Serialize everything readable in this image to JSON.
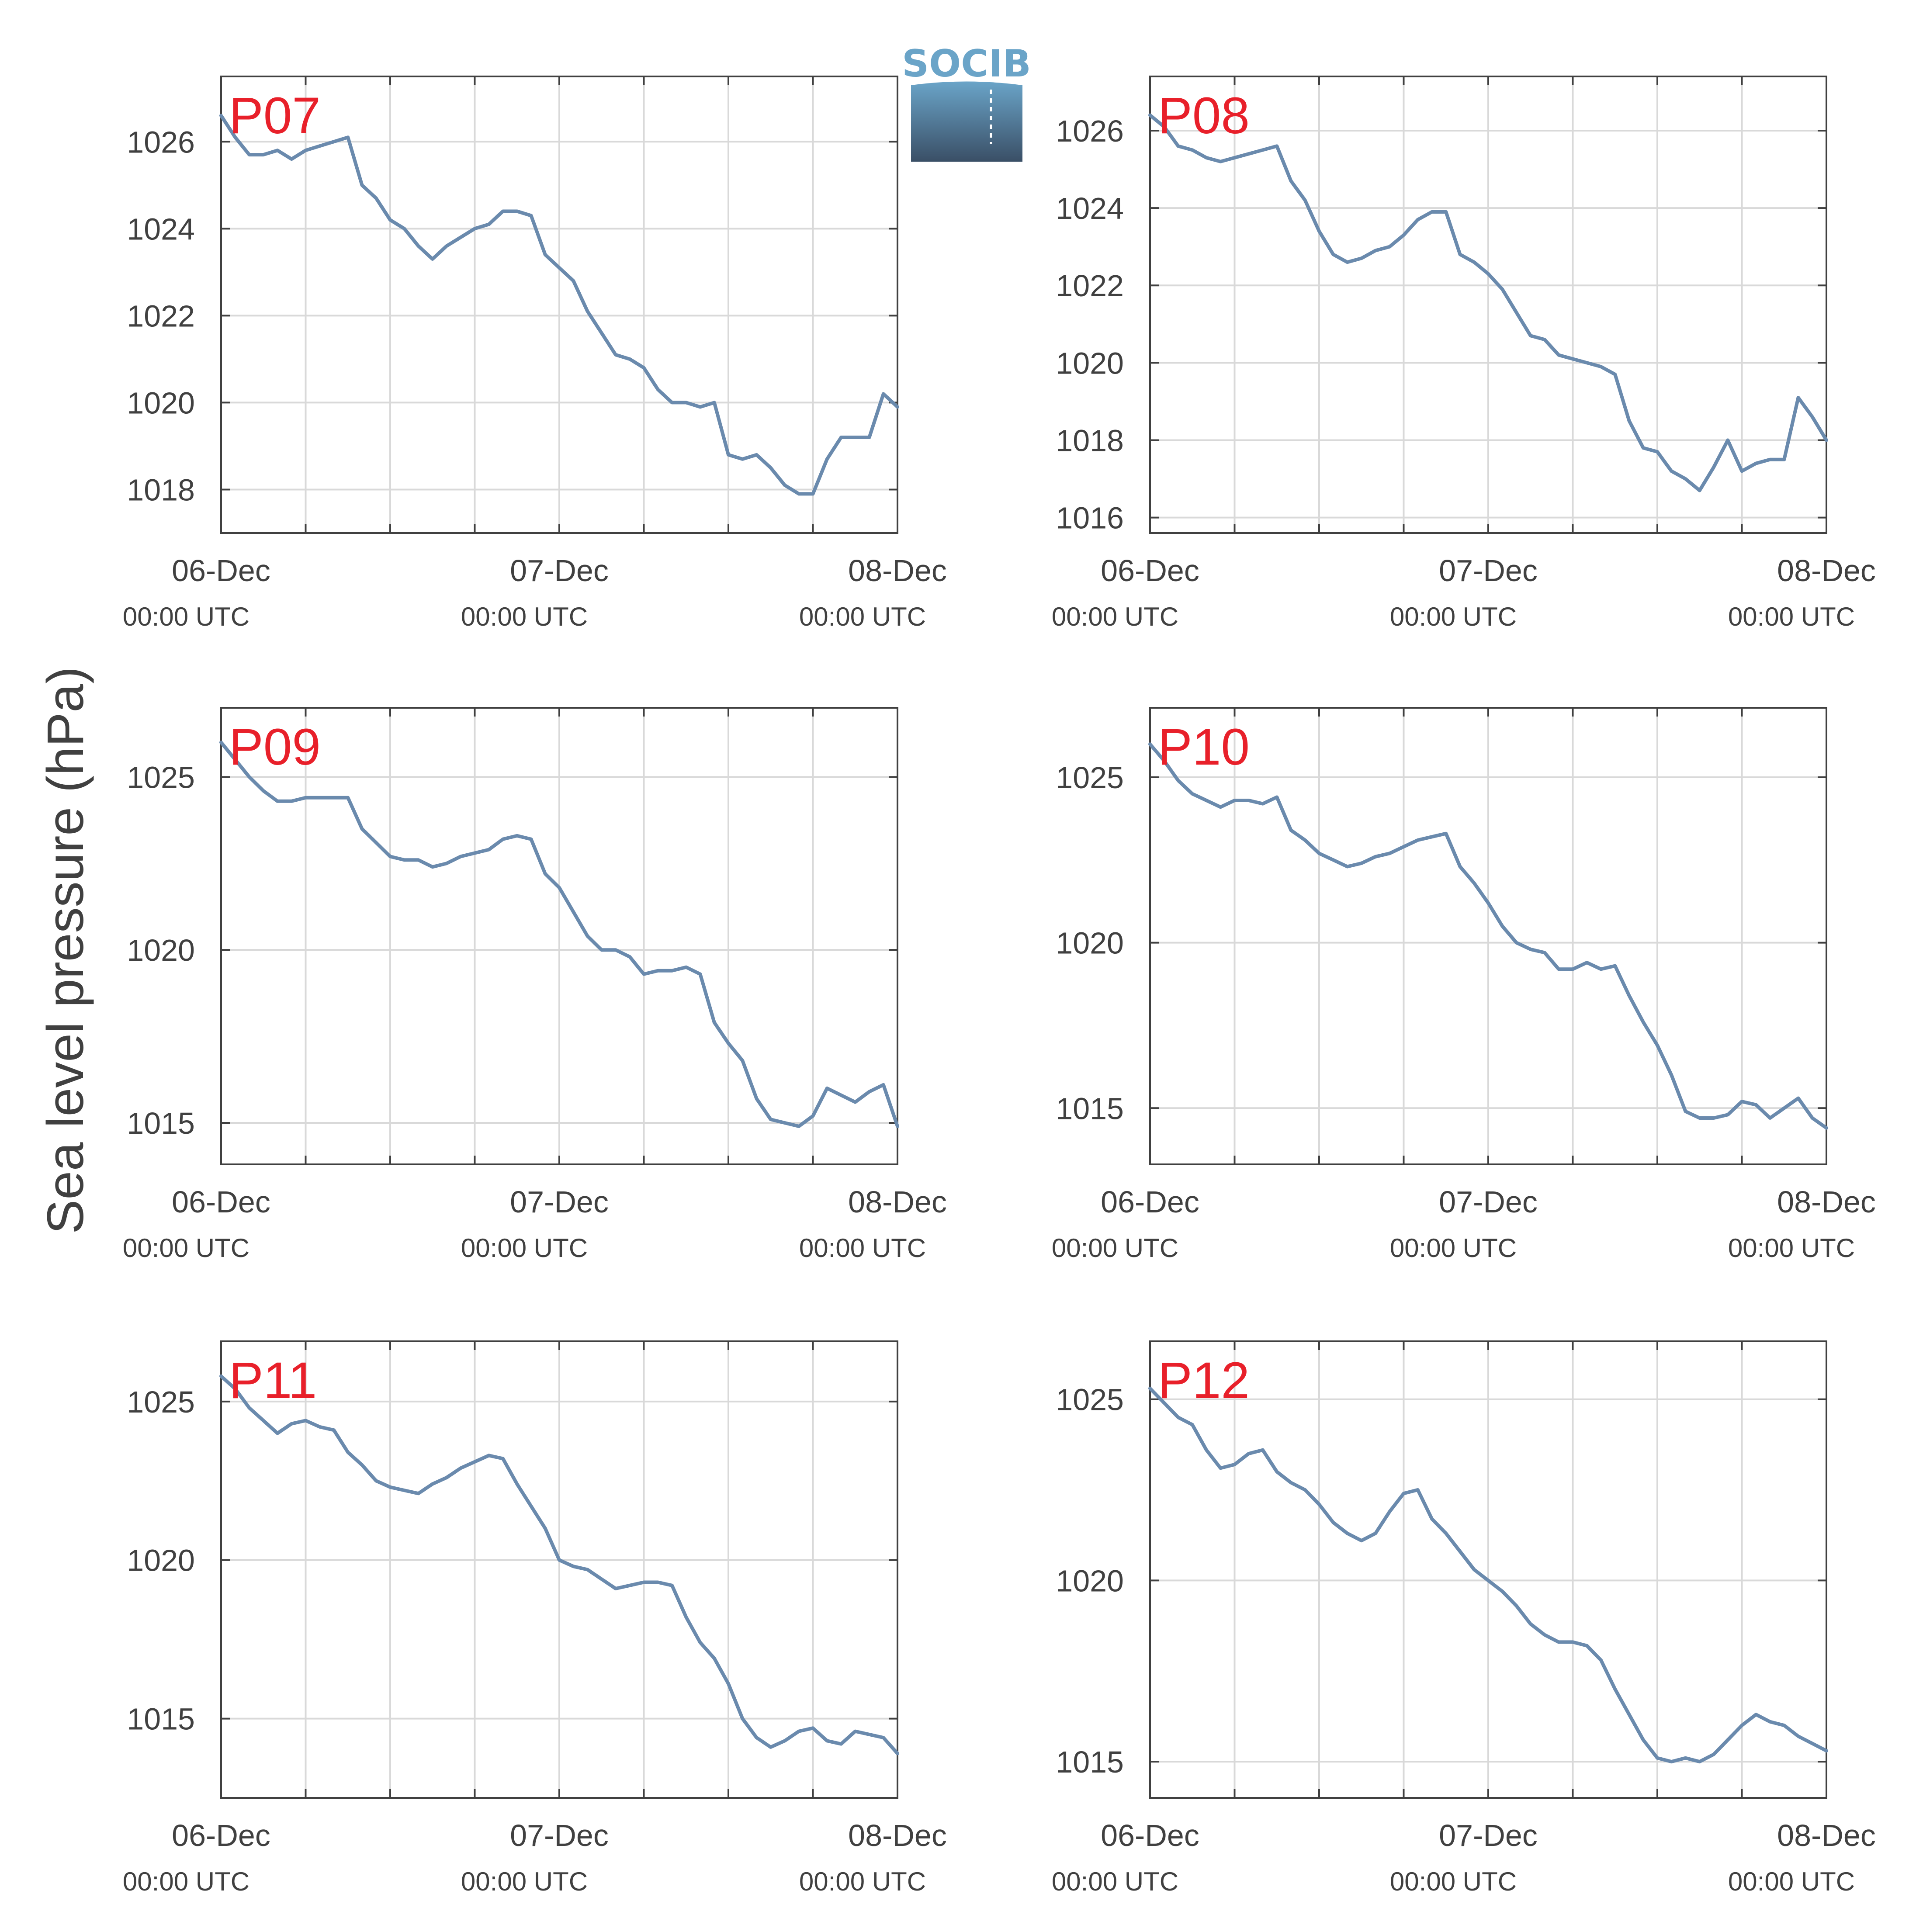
{
  "figure": {
    "ylabel": "Sea level pressure (hPa)",
    "logo_text": "SOCIB"
  },
  "colors": {
    "line": "#6a8aad",
    "label": "#e8202a",
    "grid": "#d9d9d9",
    "axis": "#404040",
    "logo_top": "#6aa4c8",
    "logo_bottom": "#3a4f66"
  },
  "chart_data": [
    {
      "type": "line",
      "title": "P07",
      "xticks": [
        {
          "top": "06-Dec",
          "bottom": "00:00 UTC"
        },
        {
          "top": "07-Dec",
          "bottom": "00:00 UTC"
        },
        {
          "top": "08-Dec",
          "bottom": "00:00 UTC"
        }
      ],
      "xlim": [
        0,
        48
      ],
      "ylim": [
        1017,
        1027.5
      ],
      "yticks": [
        1018,
        1020,
        1022,
        1024,
        1026
      ],
      "x": [
        0,
        1,
        2,
        3,
        4,
        5,
        6,
        7,
        8,
        9,
        10,
        11,
        12,
        13,
        14,
        15,
        16,
        17,
        18,
        19,
        20,
        21,
        22,
        23,
        24,
        25,
        26,
        27,
        28,
        29,
        30,
        31,
        32,
        33,
        34,
        35,
        36,
        37,
        38,
        39,
        40,
        41,
        42,
        43,
        44,
        45,
        46,
        47,
        48
      ],
      "y": [
        1026.6,
        1026.1,
        1025.7,
        1025.7,
        1025.8,
        1025.6,
        1025.8,
        1025.9,
        1026.0,
        1026.1,
        1025.0,
        1024.7,
        1024.2,
        1024.0,
        1023.6,
        1023.3,
        1023.6,
        1023.8,
        1024.0,
        1024.1,
        1024.4,
        1024.4,
        1024.3,
        1023.4,
        1023.1,
        1022.8,
        1022.1,
        1021.6,
        1021.1,
        1021.0,
        1020.8,
        1020.3,
        1020.0,
        1020.0,
        1019.9,
        1020.0,
        1018.8,
        1018.7,
        1018.8,
        1018.5,
        1018.1,
        1017.9,
        1017.9,
        1018.7,
        1019.2,
        1019.2,
        1019.2,
        1020.2,
        1019.9
      ]
    },
    {
      "type": "line",
      "title": "P08",
      "xticks": [
        {
          "top": "06-Dec",
          "bottom": "00:00 UTC"
        },
        {
          "top": "07-Dec",
          "bottom": "00:00 UTC"
        },
        {
          "top": "08-Dec",
          "bottom": "00:00 UTC"
        }
      ],
      "xlim": [
        0,
        48
      ],
      "ylim": [
        1015.6,
        1027.4
      ],
      "yticks": [
        1016,
        1018,
        1020,
        1022,
        1024,
        1026
      ],
      "x": [
        0,
        1,
        2,
        3,
        4,
        5,
        6,
        7,
        8,
        9,
        10,
        11,
        12,
        13,
        14,
        15,
        16,
        17,
        18,
        19,
        20,
        21,
        22,
        23,
        24,
        25,
        26,
        27,
        28,
        29,
        30,
        31,
        32,
        33,
        34,
        35,
        36,
        37,
        38,
        39,
        40,
        41,
        42,
        43,
        44,
        45,
        46,
        47,
        48
      ],
      "y": [
        1026.4,
        1026.1,
        1025.6,
        1025.5,
        1025.3,
        1025.2,
        1025.3,
        1025.4,
        1025.5,
        1025.6,
        1024.7,
        1024.2,
        1023.4,
        1022.8,
        1022.6,
        1022.7,
        1022.9,
        1023.0,
        1023.3,
        1023.7,
        1023.9,
        1023.9,
        1022.8,
        1022.6,
        1022.3,
        1021.9,
        1021.3,
        1020.7,
        1020.6,
        1020.2,
        1020.1,
        1020.0,
        1019.9,
        1019.7,
        1018.5,
        1017.8,
        1017.7,
        1017.2,
        1017.0,
        1016.7,
        1017.3,
        1018.0,
        1017.2,
        1017.4,
        1017.5,
        1017.5,
        1019.1,
        1018.6,
        1018.0
      ]
    },
    {
      "type": "line",
      "title": "P09",
      "xticks": [
        {
          "top": "06-Dec",
          "bottom": "00:00 UTC"
        },
        {
          "top": "07-Dec",
          "bottom": "00:00 UTC"
        },
        {
          "top": "08-Dec",
          "bottom": "00:00 UTC"
        }
      ],
      "xlim": [
        0,
        48
      ],
      "ylim": [
        1013.8,
        1027.0
      ],
      "yticks": [
        1015,
        1020,
        1025
      ],
      "x": [
        0,
        1,
        2,
        3,
        4,
        5,
        6,
        7,
        8,
        9,
        10,
        11,
        12,
        13,
        14,
        15,
        16,
        17,
        18,
        19,
        20,
        21,
        22,
        23,
        24,
        25,
        26,
        27,
        28,
        29,
        30,
        31,
        32,
        33,
        34,
        35,
        36,
        37,
        38,
        39,
        40,
        41,
        42,
        43,
        44,
        45,
        46,
        47,
        48
      ],
      "y": [
        1026.0,
        1025.5,
        1025.0,
        1024.6,
        1024.3,
        1024.3,
        1024.4,
        1024.4,
        1024.4,
        1024.4,
        1023.5,
        1023.1,
        1022.7,
        1022.6,
        1022.6,
        1022.4,
        1022.5,
        1022.7,
        1022.8,
        1022.9,
        1023.2,
        1023.3,
        1023.2,
        1022.2,
        1021.8,
        1021.1,
        1020.4,
        1020.0,
        1020.0,
        1019.8,
        1019.3,
        1019.4,
        1019.4,
        1019.5,
        1019.3,
        1017.9,
        1017.3,
        1016.8,
        1015.7,
        1015.1,
        1015.0,
        1014.9,
        1015.2,
        1016.0,
        1015.8,
        1015.6,
        1015.9,
        1016.1,
        1014.9
      ]
    },
    {
      "type": "line",
      "title": "P10",
      "xticks": [
        {
          "top": "06-Dec",
          "bottom": "00:00 UTC"
        },
        {
          "top": "07-Dec",
          "bottom": "00:00 UTC"
        },
        {
          "top": "08-Dec",
          "bottom": "00:00 UTC"
        }
      ],
      "xlim": [
        0,
        48
      ],
      "ylim": [
        1013.3,
        1027.1
      ],
      "yticks": [
        1015,
        1020,
        1025
      ],
      "x": [
        0,
        1,
        2,
        3,
        4,
        5,
        6,
        7,
        8,
        9,
        10,
        11,
        12,
        13,
        14,
        15,
        16,
        17,
        18,
        19,
        20,
        21,
        22,
        23,
        24,
        25,
        26,
        27,
        28,
        29,
        30,
        31,
        32,
        33,
        34,
        35,
        36,
        37,
        38,
        39,
        40,
        41,
        42,
        43,
        44,
        45,
        46,
        47,
        48
      ],
      "y": [
        1026.0,
        1025.5,
        1024.9,
        1024.5,
        1024.3,
        1024.1,
        1024.3,
        1024.3,
        1024.2,
        1024.4,
        1023.4,
        1023.1,
        1022.7,
        1022.5,
        1022.3,
        1022.4,
        1022.6,
        1022.7,
        1022.9,
        1023.1,
        1023.2,
        1023.3,
        1022.3,
        1021.8,
        1021.2,
        1020.5,
        1020.0,
        1019.8,
        1019.7,
        1019.2,
        1019.2,
        1019.4,
        1019.2,
        1019.3,
        1018.4,
        1017.6,
        1016.9,
        1016.0,
        1014.9,
        1014.7,
        1014.7,
        1014.8,
        1015.2,
        1015.1,
        1014.7,
        1015.0,
        1015.3,
        1014.7,
        1014.4
      ]
    },
    {
      "type": "line",
      "title": "P11",
      "xticks": [
        {
          "top": "06-Dec",
          "bottom": "00:00 UTC"
        },
        {
          "top": "07-Dec",
          "bottom": "00:00 UTC"
        },
        {
          "top": "08-Dec",
          "bottom": "00:00 UTC"
        }
      ],
      "xlim": [
        0,
        48
      ],
      "ylim": [
        1012.5,
        1026.9
      ],
      "yticks": [
        1015,
        1020,
        1025
      ],
      "x": [
        0,
        1,
        2,
        3,
        4,
        5,
        6,
        7,
        8,
        9,
        10,
        11,
        12,
        13,
        14,
        15,
        16,
        17,
        18,
        19,
        20,
        21,
        22,
        23,
        24,
        25,
        26,
        27,
        28,
        29,
        30,
        31,
        32,
        33,
        34,
        35,
        36,
        37,
        38,
        39,
        40,
        41,
        42,
        43,
        44,
        45,
        46,
        47,
        48
      ],
      "y": [
        1025.8,
        1025.4,
        1024.8,
        1024.4,
        1024.0,
        1024.3,
        1024.4,
        1024.2,
        1024.1,
        1023.4,
        1023.0,
        1022.5,
        1022.3,
        1022.2,
        1022.1,
        1022.4,
        1022.6,
        1022.9,
        1023.1,
        1023.3,
        1023.2,
        1022.4,
        1021.7,
        1021.0,
        1020.0,
        1019.8,
        1019.7,
        1019.4,
        1019.1,
        1019.2,
        1019.3,
        1019.3,
        1019.2,
        1018.2,
        1017.4,
        1016.9,
        1016.1,
        1015.0,
        1014.4,
        1014.1,
        1014.3,
        1014.6,
        1014.7,
        1014.3,
        1014.2,
        1014.6,
        1014.5,
        1014.4,
        1013.9
      ]
    },
    {
      "type": "line",
      "title": "P12",
      "xticks": [
        {
          "top": "06-Dec",
          "bottom": "00:00 UTC"
        },
        {
          "top": "07-Dec",
          "bottom": "00:00 UTC"
        },
        {
          "top": "08-Dec",
          "bottom": "00:00 UTC"
        }
      ],
      "xlim": [
        0,
        48
      ],
      "ylim": [
        1014.0,
        1026.6
      ],
      "yticks": [
        1015,
        1020,
        1025
      ],
      "x": [
        0,
        1,
        2,
        3,
        4,
        5,
        6,
        7,
        8,
        9,
        10,
        11,
        12,
        13,
        14,
        15,
        16,
        17,
        18,
        19,
        20,
        21,
        22,
        23,
        24,
        25,
        26,
        27,
        28,
        29,
        30,
        31,
        32,
        33,
        34,
        35,
        36,
        37,
        38,
        39,
        40,
        41,
        42,
        43,
        44,
        45,
        46,
        47,
        48
      ],
      "y": [
        1025.3,
        1024.9,
        1024.5,
        1024.3,
        1023.6,
        1023.1,
        1023.2,
        1023.5,
        1023.6,
        1023.0,
        1022.7,
        1022.5,
        1022.1,
        1021.6,
        1021.3,
        1021.1,
        1021.3,
        1021.9,
        1022.4,
        1022.5,
        1021.7,
        1021.3,
        1020.8,
        1020.3,
        1020.0,
        1019.7,
        1019.3,
        1018.8,
        1018.5,
        1018.3,
        1018.3,
        1018.2,
        1017.8,
        1017.0,
        1016.3,
        1015.6,
        1015.1,
        1015.0,
        1015.1,
        1015.0,
        1015.2,
        1015.6,
        1016.0,
        1016.3,
        1016.1,
        1016.0,
        1015.7,
        1015.5,
        1015.3
      ]
    }
  ]
}
